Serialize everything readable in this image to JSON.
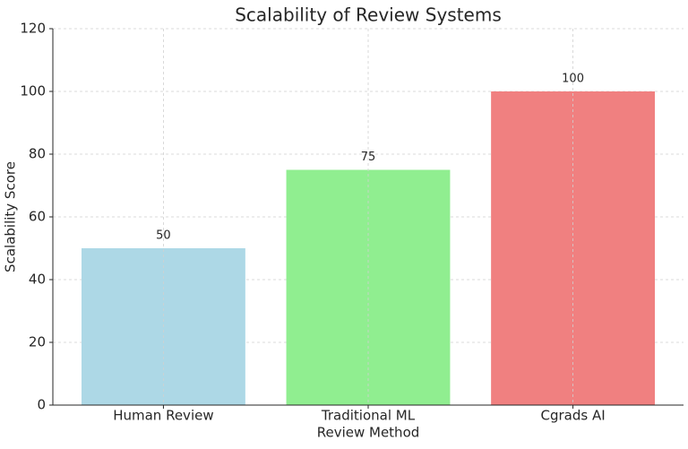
{
  "chart_data": {
    "type": "bar",
    "title": "Scalability of Review Systems",
    "x_label": "Review Method",
    "y_label": "Scalability Score",
    "categories": [
      "Human Review",
      "Traditional ML",
      "Cgrads AI"
    ],
    "values": [
      50,
      75,
      100
    ],
    "colors": [
      "#add8e6",
      "#90ee90",
      "#f08080"
    ],
    "ylim": [
      0,
      120
    ],
    "yticks": [
      0,
      20,
      40,
      60,
      80,
      100,
      120
    ],
    "grid": true
  }
}
